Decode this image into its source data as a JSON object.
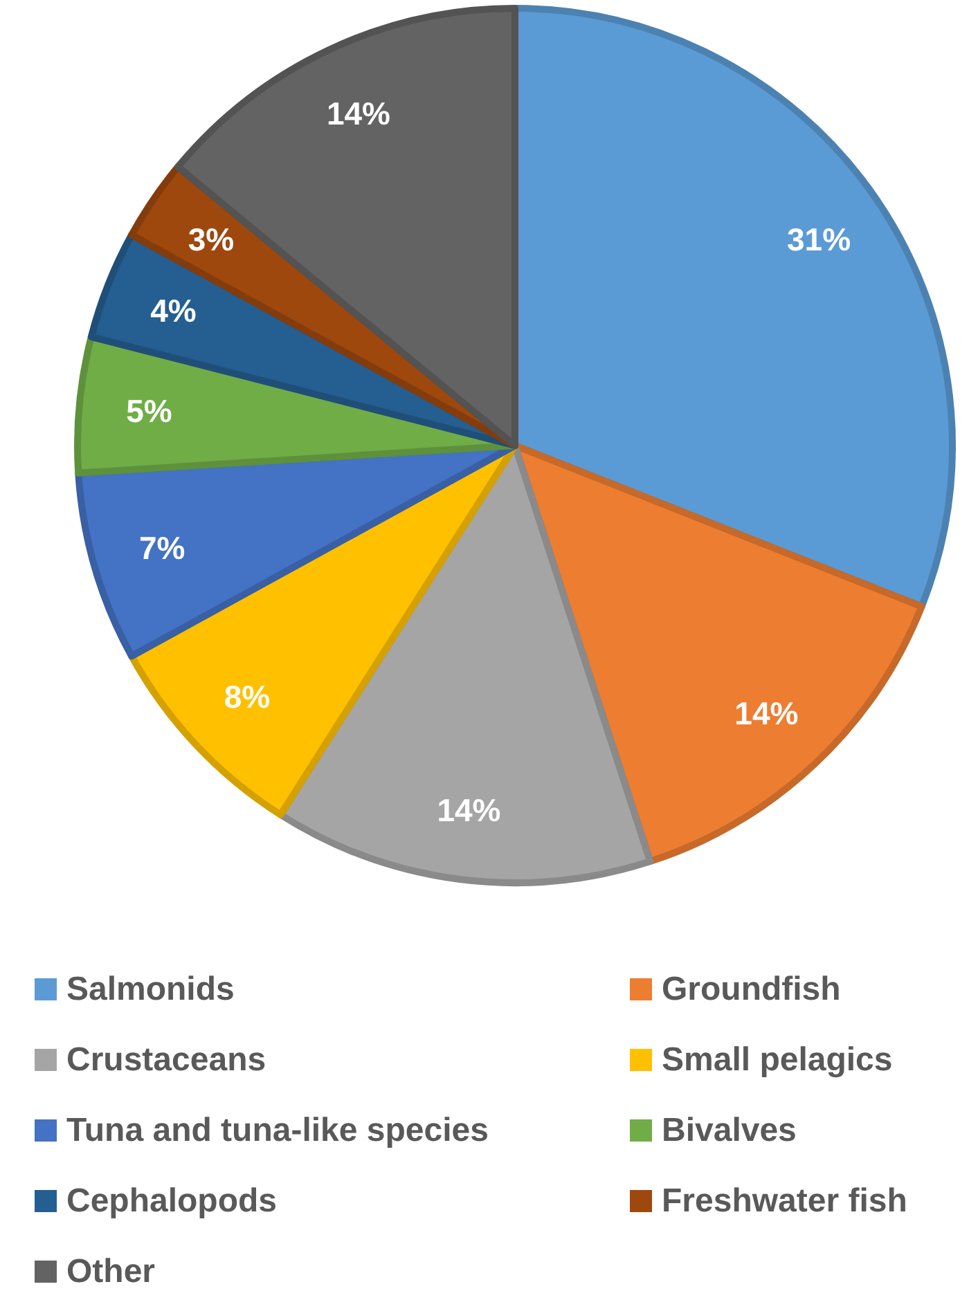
{
  "chart_data": {
    "type": "pie",
    "categories": [
      "Salmonids",
      "Groundfish",
      "Crustaceans",
      "Small pelagics",
      "Tuna and tuna-like species",
      "Bivalves",
      "Cephalopods",
      "Freshwater fish",
      "Other"
    ],
    "values": [
      31,
      14,
      14,
      8,
      7,
      5,
      4,
      3,
      14
    ],
    "colors": [
      "#5b9bd5",
      "#ed7d31",
      "#a5a5a5",
      "#ffc000",
      "#4472c4",
      "#70ad47",
      "#255e91",
      "#9e480e",
      "#636363"
    ],
    "value_labels": [
      "31%",
      "14%",
      "14%",
      "8%",
      "7%",
      "5%",
      "4%",
      "3%",
      "14%"
    ],
    "legend": "bottom"
  }
}
